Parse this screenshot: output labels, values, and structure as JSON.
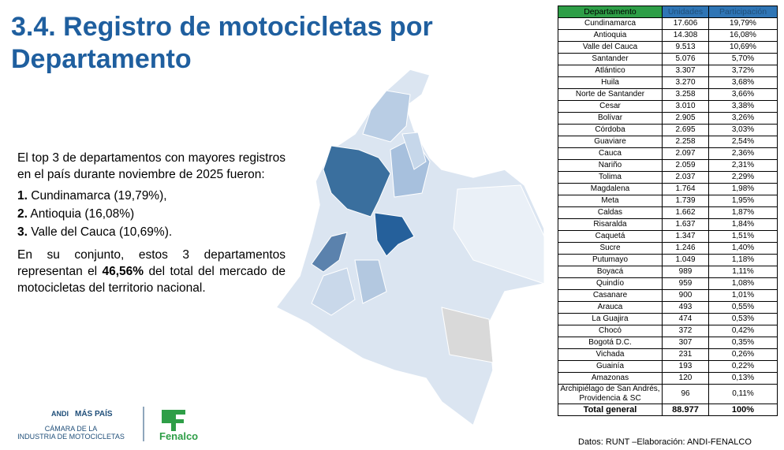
{
  "title": "3.4. Registro de motocicletas por Departamento",
  "intro": "El top 3 de departamentos con mayores registros en el país durante noviembre de 2025 fueron:",
  "top_list": [
    {
      "rank": "1.",
      "text": "Cundinamarca (19,79%),"
    },
    {
      "rank": "2.",
      "text": "Antioquia (16,08%)"
    },
    {
      "rank": "3.",
      "text": "Valle del Cauca (10,69%)."
    }
  ],
  "summary": {
    "before": "En su conjunto, estos 3 departamentos representan el",
    "highlight": "46,56%",
    "after": "del total del mercado de motocicletas del territorio nacional."
  },
  "table": {
    "headers": [
      "Departamento",
      "Unidades",
      "Participación"
    ],
    "rows": [
      [
        "Cundinamarca",
        "17.606",
        "19,79%"
      ],
      [
        "Antioquia",
        "14.308",
        "16,08%"
      ],
      [
        "Valle del Cauca",
        "9.513",
        "10,69%"
      ],
      [
        "Santander",
        "5.076",
        "5,70%"
      ],
      [
        "Atlántico",
        "3.307",
        "3,72%"
      ],
      [
        "Huila",
        "3.270",
        "3,68%"
      ],
      [
        "Norte de Santander",
        "3.258",
        "3,66%"
      ],
      [
        "Cesar",
        "3.010",
        "3,38%"
      ],
      [
        "Bolívar",
        "2.905",
        "3,26%"
      ],
      [
        "Córdoba",
        "2.695",
        "3,03%"
      ],
      [
        "Guaviare",
        "2.258",
        "2,54%"
      ],
      [
        "Cauca",
        "2.097",
        "2,36%"
      ],
      [
        "Nariño",
        "2.059",
        "2,31%"
      ],
      [
        "Tolima",
        "2.037",
        "2,29%"
      ],
      [
        "Magdalena",
        "1.764",
        "1,98%"
      ],
      [
        "Meta",
        "1.739",
        "1,95%"
      ],
      [
        "Caldas",
        "1.662",
        "1,87%"
      ],
      [
        "Risaralda",
        "1.637",
        "1,84%"
      ],
      [
        "Caquetá",
        "1.347",
        "1,51%"
      ],
      [
        "Sucre",
        "1.246",
        "1,40%"
      ],
      [
        "Putumayo",
        "1.049",
        "1,18%"
      ],
      [
        "Boyacá",
        "989",
        "1,11%"
      ],
      [
        "Quindío",
        "959",
        "1,08%"
      ],
      [
        "Casanare",
        "900",
        "1,01%"
      ],
      [
        "Arauca",
        "493",
        "0,55%"
      ],
      [
        "La Guajira",
        "474",
        "0,53%"
      ],
      [
        "Chocó",
        "372",
        "0,42%"
      ],
      [
        "Bogotá D.C.",
        "307",
        "0,35%"
      ],
      [
        "Vichada",
        "231",
        "0,26%"
      ],
      [
        "Guainía",
        "193",
        "0,22%"
      ],
      [
        "Amazonas",
        "120",
        "0,13%"
      ],
      [
        "Archipiélago de San Andrés, Providencia & SC",
        "96",
        "0,11%"
      ]
    ],
    "total": [
      "Total general",
      "88.977",
      "100%"
    ]
  },
  "source": "Datos: RUNT –Elaboración: ANDI-FENALCO",
  "logos": {
    "andi": "ANDI",
    "mas_pais": "MÁS PAÍS",
    "camara_line1": "CÁMARA DE LA",
    "camara_line2": "INDUSTRIA DE MOTOCICLETAS",
    "fenalco": "Fenalco"
  }
}
